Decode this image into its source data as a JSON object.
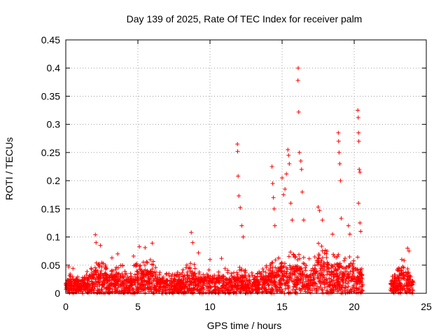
{
  "chart_data": {
    "type": "scatter",
    "title": "Day 139 of 2025, Rate Of TEC Index for receiver palm",
    "xlabel": "GPS time / hours",
    "ylabel": "ROTI / TECUs",
    "xlim": [
      0,
      25
    ],
    "ylim": [
      0,
      0.45
    ],
    "x_ticks": [
      0,
      5,
      10,
      15,
      20,
      25
    ],
    "x_tick_labels": [
      "0",
      "5",
      "10",
      "15",
      "20",
      "25"
    ],
    "y_ticks": [
      0,
      0.05,
      0.1,
      0.15,
      0.2,
      0.25,
      0.3,
      0.35,
      0.4,
      0.45
    ],
    "y_tick_labels": [
      "0",
      "0.05",
      "0.1",
      "0.15",
      "0.2",
      "0.25",
      "0.3",
      "0.35",
      "0.4",
      "0.45"
    ],
    "grid": true,
    "marker": "+",
    "marker_color": "#ff0000",
    "grid_color": "#a0a0a0",
    "data_gap_hours": [
      20.6,
      22.5
    ],
    "series": [
      {
        "name": "ROTI",
        "baseline_envelope": [
          [
            0.0,
            0.035
          ],
          [
            0.5,
            0.04
          ],
          [
            1.0,
            0.035
          ],
          [
            1.5,
            0.04
          ],
          [
            2.0,
            0.06
          ],
          [
            2.5,
            0.055
          ],
          [
            3.0,
            0.045
          ],
          [
            3.5,
            0.05
          ],
          [
            4.0,
            0.05
          ],
          [
            4.5,
            0.045
          ],
          [
            5.0,
            0.055
          ],
          [
            5.5,
            0.06
          ],
          [
            6.0,
            0.06
          ],
          [
            6.5,
            0.04
          ],
          [
            7.0,
            0.035
          ],
          [
            7.5,
            0.035
          ],
          [
            8.0,
            0.04
          ],
          [
            8.5,
            0.06
          ],
          [
            9.0,
            0.05
          ],
          [
            9.5,
            0.04
          ],
          [
            10.0,
            0.045
          ],
          [
            10.5,
            0.04
          ],
          [
            11.0,
            0.045
          ],
          [
            11.5,
            0.04
          ],
          [
            12.0,
            0.05
          ],
          [
            12.5,
            0.04
          ],
          [
            13.0,
            0.04
          ],
          [
            13.5,
            0.045
          ],
          [
            14.0,
            0.05
          ],
          [
            14.5,
            0.06
          ],
          [
            15.0,
            0.07
          ],
          [
            15.5,
            0.075
          ],
          [
            16.0,
            0.07
          ],
          [
            16.5,
            0.07
          ],
          [
            17.0,
            0.06
          ],
          [
            17.5,
            0.09
          ],
          [
            18.0,
            0.08
          ],
          [
            18.5,
            0.07
          ],
          [
            19.0,
            0.07
          ],
          [
            19.5,
            0.07
          ],
          [
            20.0,
            0.07
          ],
          [
            20.5,
            0.06
          ],
          [
            22.5,
            0.03
          ],
          [
            23.0,
            0.045
          ],
          [
            23.5,
            0.06
          ],
          [
            24.0,
            0.04
          ]
        ],
        "spikes": [
          [
            0.2,
            0.047
          ],
          [
            0.5,
            0.044
          ],
          [
            2.05,
            0.104
          ],
          [
            2.1,
            0.09
          ],
          [
            2.4,
            0.085
          ],
          [
            3.2,
            0.063
          ],
          [
            3.6,
            0.07
          ],
          [
            4.7,
            0.066
          ],
          [
            5.1,
            0.083
          ],
          [
            5.5,
            0.081
          ],
          [
            6.0,
            0.089
          ],
          [
            8.7,
            0.108
          ],
          [
            8.8,
            0.09
          ],
          [
            9.2,
            0.072
          ],
          [
            10.0,
            0.06
          ],
          [
            10.8,
            0.062
          ],
          [
            11.9,
            0.265
          ],
          [
            11.92,
            0.252
          ],
          [
            11.95,
            0.208
          ],
          [
            12.0,
            0.173
          ],
          [
            12.1,
            0.152
          ],
          [
            12.2,
            0.12
          ],
          [
            12.3,
            0.1
          ],
          [
            14.3,
            0.225
          ],
          [
            14.35,
            0.195
          ],
          [
            14.4,
            0.17
          ],
          [
            14.45,
            0.15
          ],
          [
            14.5,
            0.12
          ],
          [
            15.0,
            0.205
          ],
          [
            15.1,
            0.175
          ],
          [
            15.2,
            0.185
          ],
          [
            15.3,
            0.212
          ],
          [
            15.4,
            0.255
          ],
          [
            15.45,
            0.245
          ],
          [
            15.5,
            0.23
          ],
          [
            15.6,
            0.16
          ],
          [
            15.7,
            0.13
          ],
          [
            16.12,
            0.4
          ],
          [
            16.1,
            0.378
          ],
          [
            16.15,
            0.322
          ],
          [
            16.2,
            0.25
          ],
          [
            16.3,
            0.235
          ],
          [
            16.35,
            0.22
          ],
          [
            16.4,
            0.18
          ],
          [
            16.5,
            0.13
          ],
          [
            17.5,
            0.153
          ],
          [
            17.6,
            0.147
          ],
          [
            17.8,
            0.13
          ],
          [
            18.5,
            0.105
          ],
          [
            18.9,
            0.285
          ],
          [
            18.92,
            0.27
          ],
          [
            18.95,
            0.25
          ],
          [
            19.0,
            0.23
          ],
          [
            19.05,
            0.2
          ],
          [
            19.1,
            0.133
          ],
          [
            19.6,
            0.12
          ],
          [
            19.7,
            0.105
          ],
          [
            20.25,
            0.325
          ],
          [
            20.28,
            0.312
          ],
          [
            20.3,
            0.285
          ],
          [
            20.32,
            0.27
          ],
          [
            20.35,
            0.22
          ],
          [
            20.4,
            0.215
          ],
          [
            20.3,
            0.16
          ],
          [
            20.4,
            0.125
          ],
          [
            20.45,
            0.11
          ],
          [
            23.7,
            0.08
          ],
          [
            23.8,
            0.075
          ],
          [
            23.3,
            0.06
          ]
        ]
      }
    ]
  }
}
